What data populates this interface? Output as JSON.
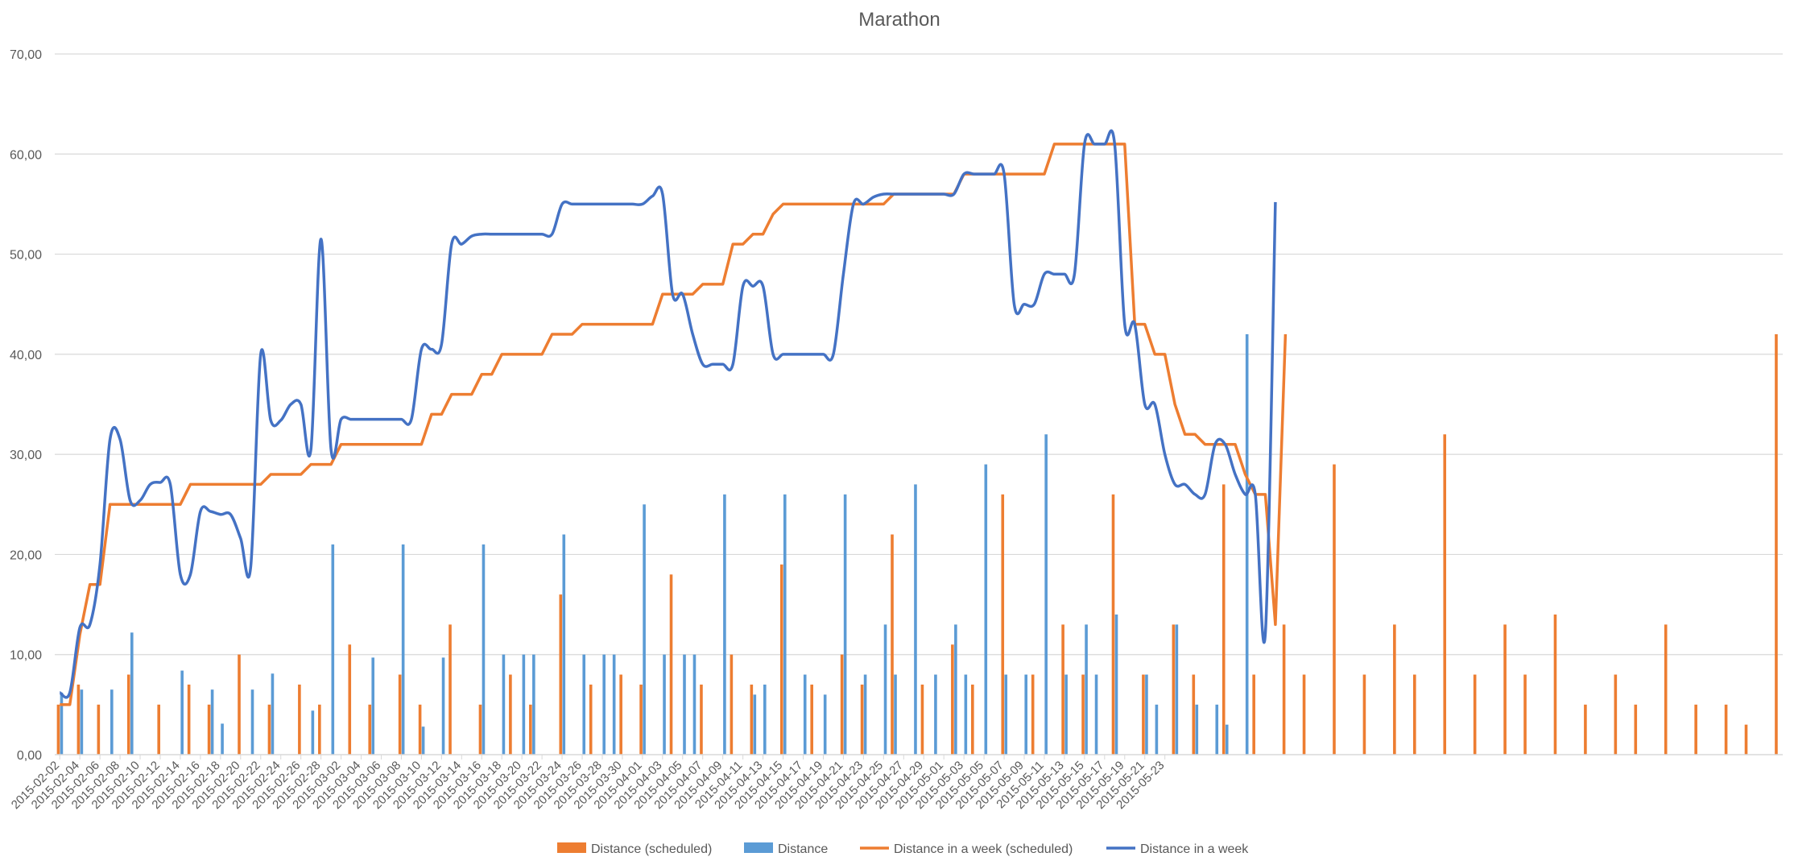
{
  "chart_data": {
    "type": "bar",
    "title": "Marathon",
    "xlabel": "",
    "ylabel": "",
    "ylim": [
      0,
      70
    ],
    "yticks": [
      "0,00",
      "10,00",
      "20,00",
      "30,00",
      "40,00",
      "50,00",
      "60,00",
      "70,00"
    ],
    "grid": true,
    "legend_position": "bottom",
    "start_date": "2015-02-02",
    "num_days": 113,
    "x_tick_labels": [
      "2015-02-02",
      "2015-02-04",
      "2015-02-06",
      "2015-02-08",
      "2015-02-10",
      "2015-02-12",
      "2015-02-14",
      "2015-02-16",
      "2015-02-18",
      "2015-02-20",
      "2015-02-22",
      "2015-02-24",
      "2015-02-26",
      "2015-02-28",
      "2015-03-02",
      "2015-03-04",
      "2015-03-06",
      "2015-03-08",
      "2015-03-10",
      "2015-03-12",
      "2015-03-14",
      "2015-03-16",
      "2015-03-18",
      "2015-03-20",
      "2015-03-22",
      "2015-03-24",
      "2015-03-26",
      "2015-03-28",
      "2015-03-30",
      "2015-04-01",
      "2015-04-03",
      "2015-04-05",
      "2015-04-07",
      "2015-04-09",
      "2015-04-11",
      "2015-04-13",
      "2015-04-15",
      "2015-04-17",
      "2015-04-19",
      "2015-04-21",
      "2015-04-23",
      "2015-04-25",
      "2015-04-27",
      "2015-04-29",
      "2015-05-01",
      "2015-05-03",
      "2015-05-05",
      "2015-05-07",
      "2015-05-09",
      "2015-05-11",
      "2015-05-13",
      "2015-05-15",
      "2015-05-17",
      "2015-05-19",
      "2015-05-21",
      "2015-05-23"
    ],
    "series": [
      {
        "name": "Distance (scheduled)",
        "kind": "bar",
        "color": "#ED7D31",
        "values": [
          5,
          0,
          7,
          0,
          5,
          0,
          0,
          8,
          0,
          0,
          5,
          0,
          0,
          7,
          0,
          5,
          0,
          0,
          10,
          0,
          0,
          5,
          0,
          0,
          7,
          0,
          5,
          0,
          0,
          11,
          0,
          5,
          0,
          0,
          8,
          0,
          5,
          0,
          0,
          13,
          0,
          0,
          5,
          0,
          0,
          8,
          0,
          5,
          0,
          0,
          16,
          0,
          0,
          7,
          0,
          0,
          8,
          0,
          7,
          0,
          0,
          18,
          0,
          0,
          7,
          0,
          0,
          10,
          0,
          7,
          0,
          0,
          19,
          0,
          0,
          7,
          0,
          0,
          10,
          0,
          7,
          0,
          0,
          22,
          0,
          0,
          7,
          0,
          0,
          11,
          0,
          7,
          0,
          0,
          26,
          0,
          0,
          8,
          0,
          0,
          13,
          0,
          8,
          0,
          0,
          26,
          0,
          0,
          8,
          0,
          0,
          13,
          0,
          8,
          0,
          0,
          27,
          0,
          0,
          8,
          0,
          0,
          13,
          0,
          8,
          0,
          0,
          29,
          0,
          0,
          8,
          0,
          0,
          13,
          0,
          8,
          0,
          0,
          32,
          0,
          0,
          8,
          0,
          0,
          13,
          0,
          8,
          0,
          0,
          14,
          0,
          0,
          5,
          0,
          0,
          8,
          0,
          5,
          0,
          0,
          13,
          0,
          0,
          5,
          0,
          0,
          5,
          0,
          3,
          0,
          0,
          42
        ]
      },
      {
        "name": "Distance",
        "kind": "bar",
        "color": "#5B9BD5",
        "values": [
          6.2,
          0,
          6.5,
          0,
          0,
          6.5,
          0,
          12.2,
          0,
          0,
          0,
          0,
          8.4,
          0,
          0,
          6.5,
          3.1,
          0,
          0,
          6.5,
          0,
          8.1,
          0,
          0,
          0,
          4.4,
          0,
          21,
          0,
          0,
          0,
          9.7,
          0,
          0,
          21,
          0,
          2.8,
          0,
          9.7,
          0,
          0,
          0,
          21,
          0,
          10,
          0,
          10,
          10,
          0,
          0,
          22,
          0,
          10,
          0,
          10,
          10,
          0,
          0,
          25,
          0,
          10,
          0,
          10,
          10,
          0,
          0,
          26,
          0,
          0,
          6,
          7,
          0,
          26,
          0,
          8,
          0,
          6,
          0,
          26,
          0,
          8,
          0,
          13,
          8,
          0,
          27,
          0,
          8,
          0,
          13,
          8,
          0,
          29,
          0,
          8,
          0,
          8,
          0,
          32,
          0,
          8,
          0,
          13,
          8,
          0,
          14,
          0,
          0,
          8,
          5,
          0,
          13,
          0,
          5,
          0,
          5,
          3,
          0,
          42
        ]
      },
      {
        "name": "Distance in a week (scheduled)",
        "kind": "line",
        "color": "#ED7D31",
        "values": [
          5,
          5,
          12,
          17,
          17,
          25,
          25,
          25,
          25,
          25,
          25,
          25,
          25,
          27,
          27,
          27,
          27,
          27,
          27,
          27,
          27,
          28,
          28,
          28,
          28,
          29,
          29,
          29,
          31,
          31,
          31,
          31,
          31,
          31,
          31,
          31,
          31,
          34,
          34,
          36,
          36,
          36,
          38,
          38,
          40,
          40,
          40,
          40,
          40,
          42,
          42,
          42,
          43,
          43,
          43,
          43,
          43,
          43,
          43,
          43,
          46,
          46,
          46,
          46,
          47,
          47,
          47,
          51,
          51,
          52,
          52,
          54,
          55,
          55,
          55,
          55,
          55,
          55,
          55,
          55,
          55,
          55,
          55,
          56,
          56,
          56,
          56,
          56,
          56,
          56,
          58,
          58,
          58,
          58,
          58,
          58,
          58,
          58,
          58,
          61,
          61,
          61,
          61,
          61,
          61,
          61,
          61,
          43,
          43,
          40,
          40,
          35,
          32,
          32,
          31,
          31,
          31,
          31,
          28,
          26,
          26,
          13,
          42
        ]
      },
      {
        "name": "Distance in a week",
        "kind": "line",
        "color": "#4472C4",
        "values": [
          6.2,
          6.2,
          12.7,
          13,
          19,
          31.5,
          31.5,
          25.4,
          25.4,
          27,
          27.2,
          27,
          18,
          18,
          24.3,
          24.3,
          24,
          24,
          21.6,
          18.7,
          40,
          33.4,
          33.4,
          35,
          35,
          30.5,
          51.5,
          30.5,
          33.5,
          33.5,
          33.5,
          33.5,
          33.5,
          33.5,
          33.5,
          33.5,
          40.5,
          40.5,
          41,
          51,
          51,
          51.8,
          52,
          52,
          52,
          52,
          52,
          52,
          52,
          52,
          55,
          55,
          55,
          55,
          55,
          55,
          55,
          55,
          55,
          55.8,
          56,
          46,
          46,
          42,
          39,
          39,
          39,
          39,
          46.8,
          46.8,
          46.8,
          40,
          40,
          40,
          40,
          40,
          40,
          40,
          48,
          55,
          55,
          55.7,
          56,
          56,
          56,
          56,
          56,
          56,
          56,
          56,
          58,
          58,
          58,
          58,
          58,
          45,
          45,
          45,
          48,
          48,
          48,
          48,
          61,
          61,
          61,
          61,
          43,
          43,
          35,
          35,
          30,
          27,
          27,
          26,
          26,
          31,
          31,
          28,
          26,
          26,
          12.1,
          55.2
        ]
      }
    ]
  }
}
